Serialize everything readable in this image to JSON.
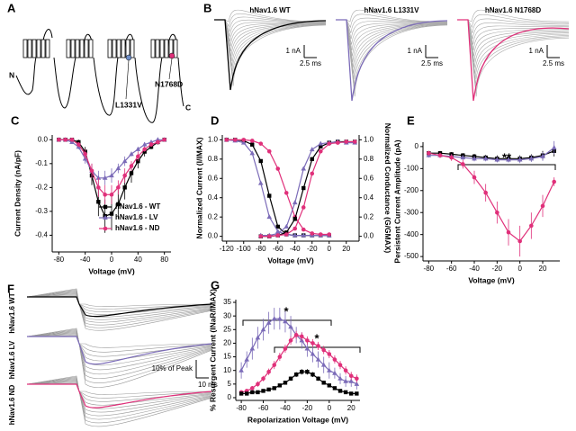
{
  "diagram": {
    "panel": "A",
    "n_terminus": "N",
    "c_terminus": "C",
    "mutations": [
      "L1331V",
      "N1768D"
    ]
  },
  "traces_b": {
    "panel": "B",
    "titles": [
      "hNav1.6 WT",
      "hNav1.6 L1331V",
      "hNav1.6 N1768D"
    ],
    "scale_current": [
      "1 nA",
      "1 nA",
      "1 nA"
    ],
    "scale_time": [
      "2.5 ms",
      "2.5 ms",
      "2.5 ms"
    ]
  },
  "traces_f": {
    "panel": "F",
    "labels": [
      "hNav1.6 WT",
      "hNav1.6 LV",
      "hNav1.6 ND"
    ],
    "scale_amplitude": "10% of Peak",
    "scale_time": "10 ms"
  },
  "chart_data": [
    {
      "type": "line",
      "panel": "C",
      "xlabel": "Voltage (mV)",
      "ylabel": "Current Density (nA/pF)",
      "xlim": [
        -90,
        90
      ],
      "ylim": [
        -0.47,
        0.02
      ],
      "xticks": [
        -80,
        -40,
        0,
        40,
        80
      ],
      "yticks": [
        {
          "value": 0,
          "label": "0.0"
        },
        -0.1,
        -0.2,
        -0.3,
        -0.4
      ],
      "legend": "lower right",
      "x": [
        -80,
        -70,
        -60,
        -50,
        -40,
        -30,
        -20,
        -10,
        0,
        10,
        20,
        30,
        40,
        50,
        60,
        70,
        80
      ],
      "series": [
        {
          "name": "hNav1.6 - WT",
          "color": "#000000",
          "marker": "square",
          "values": [
            0,
            0,
            0,
            -0.01,
            -0.05,
            -0.15,
            -0.26,
            -0.32,
            -0.31,
            -0.27,
            -0.2,
            -0.14,
            -0.09,
            -0.05,
            -0.03,
            -0.01,
            0
          ],
          "errors": [
            0,
            0,
            0,
            0.01,
            0.02,
            0.04,
            0.06,
            0.07,
            0.07,
            0.06,
            0.05,
            0.04,
            0.03,
            0.02,
            0.01,
            0.01,
            0
          ]
        },
        {
          "name": "hNav1.6 - LV",
          "color": "#7b6bb8",
          "marker": "triangle",
          "values": [
            0,
            0,
            -0.01,
            -0.03,
            -0.08,
            -0.13,
            -0.16,
            -0.16,
            -0.15,
            -0.12,
            -0.09,
            -0.06,
            -0.04,
            -0.02,
            -0.01,
            0,
            0
          ],
          "errors": [
            0,
            0,
            0,
            0.01,
            0.02,
            0.03,
            0.03,
            0.03,
            0.03,
            0.02,
            0.02,
            0.01,
            0.01,
            0.01,
            0,
            0,
            0
          ]
        },
        {
          "name": "hNav1.6 - ND",
          "color": "#e0307a",
          "marker": "circle",
          "values": [
            0,
            0,
            0,
            -0.02,
            -0.06,
            -0.13,
            -0.2,
            -0.23,
            -0.23,
            -0.2,
            -0.15,
            -0.11,
            -0.07,
            -0.04,
            -0.02,
            -0.01,
            0
          ],
          "errors": [
            0,
            0,
            0,
            0.01,
            0.02,
            0.03,
            0.04,
            0.04,
            0.04,
            0.03,
            0.03,
            0.02,
            0.02,
            0.01,
            0.01,
            0,
            0
          ]
        }
      ]
    },
    {
      "type": "line",
      "panel": "D",
      "xlabel": "Voltage (mV)",
      "ylabel": "Normalized Current (I/IMAX)",
      "y2label": "Normalized Conductance (G/GMAX)",
      "xlim": [
        -125,
        35
      ],
      "ylim": [
        -0.05,
        1.05
      ],
      "y2lim": [
        -0.05,
        1.05
      ],
      "xticks": [
        -120,
        -100,
        -80,
        -60,
        -40,
        -20,
        0,
        20
      ],
      "yticks": [
        {
          "value": 0,
          "label": "0.0"
        },
        0.2,
        0.4,
        0.6,
        0.8,
        {
          "value": 1,
          "label": "1.0"
        }
      ],
      "y2ticks": [
        {
          "value": 0,
          "label": "0.0"
        },
        0.2,
        0.4,
        0.6,
        0.8,
        {
          "value": 1,
          "label": "1.0"
        }
      ],
      "x": [
        -120,
        -110,
        -100,
        -90,
        -80,
        -70,
        -60,
        -50,
        -40,
        -30,
        -20,
        -10,
        0,
        10,
        20,
        30
      ],
      "series": [
        {
          "color": "#000000",
          "marker": "square",
          "values": [
            1,
            1,
            0.99,
            0.95,
            0.78,
            0.42,
            0.1,
            0.02,
            0.01,
            0.01,
            0.01,
            0.01,
            0.01,
            null,
            null,
            null
          ]
        },
        {
          "color": "#7b6bb8",
          "marker": "triangle",
          "values": [
            1,
            0.99,
            0.97,
            0.86,
            0.55,
            0.2,
            0.05,
            0.02,
            0.01,
            0.01,
            0.01,
            0.01,
            0.01,
            null,
            null,
            null
          ]
        },
        {
          "color": "#e0307a",
          "marker": "circle",
          "values": [
            1,
            1,
            1,
            0.99,
            0.96,
            0.88,
            0.7,
            0.45,
            0.2,
            0.07,
            0.03,
            0.02,
            0.02,
            null,
            null,
            null
          ]
        },
        {
          "color": "#000000",
          "marker": "square",
          "axis": "y2",
          "values": [
            null,
            null,
            null,
            null,
            0,
            0,
            0.01,
            0.04,
            0.18,
            0.5,
            0.8,
            0.93,
            0.97,
            0.98,
            0.98,
            0.98
          ]
        },
        {
          "color": "#7b6bb8",
          "marker": "triangle",
          "axis": "y2",
          "values": [
            null,
            null,
            null,
            null,
            0.01,
            0.01,
            0.03,
            0.1,
            0.35,
            0.7,
            0.9,
            0.96,
            0.97,
            0.98,
            0.97,
            0.97
          ]
        },
        {
          "color": "#e0307a",
          "marker": "circle",
          "axis": "y2",
          "values": [
            null,
            null,
            null,
            null,
            0,
            0,
            0.01,
            0.02,
            0.08,
            0.3,
            0.65,
            0.88,
            0.96,
            0.97,
            0.98,
            0.98
          ]
        }
      ]
    },
    {
      "type": "line",
      "panel": "E",
      "xlabel": "Voltage (mV)",
      "ylabel": "Persistent Current Amplitude (pA)",
      "xlim": [
        -85,
        35
      ],
      "ylim": [
        -520,
        20
      ],
      "xticks": [
        -80,
        -60,
        -40,
        -20,
        0,
        20
      ],
      "yticks": [
        0,
        -100,
        -200,
        -300,
        -400,
        -500
      ],
      "annotations": [
        "**"
      ],
      "x": [
        -80,
        -70,
        -60,
        -50,
        -40,
        -30,
        -20,
        -10,
        0,
        10,
        20,
        30
      ],
      "series": [
        {
          "color": "#000000",
          "marker": "square",
          "values": [
            -30,
            -30,
            -35,
            -40,
            -45,
            -50,
            -55,
            -55,
            -55,
            -50,
            -40,
            -20
          ],
          "errors": [
            10,
            10,
            10,
            10,
            12,
            12,
            15,
            15,
            15,
            15,
            20,
            25
          ]
        },
        {
          "color": "#7b6bb8",
          "marker": "triangle",
          "values": [
            -40,
            -40,
            -45,
            -50,
            -55,
            -55,
            -60,
            -60,
            -60,
            -55,
            -45,
            -5
          ],
          "errors": [
            10,
            10,
            10,
            10,
            12,
            12,
            12,
            12,
            15,
            15,
            20,
            30
          ]
        },
        {
          "color": "#e0307a",
          "marker": "circle",
          "values": [
            -30,
            -40,
            -50,
            -80,
            -140,
            -210,
            -300,
            -390,
            -430,
            -360,
            -270,
            -160
          ],
          "errors": [
            10,
            12,
            15,
            20,
            30,
            40,
            50,
            60,
            70,
            60,
            50,
            20
          ]
        }
      ]
    },
    {
      "type": "line",
      "panel": "G",
      "xlabel": "Repolarization Voltage (mV)",
      "ylabel": "% Resurgent Current (INaR/IMAX)",
      "xlim": [
        -85,
        28
      ],
      "ylim": [
        -1,
        36
      ],
      "xticks": [
        -80,
        -60,
        -40,
        -20,
        0,
        20
      ],
      "yticks": [
        0,
        5,
        10,
        15,
        20,
        25,
        30,
        35
      ],
      "annotations": [
        "*",
        "*"
      ],
      "x": [
        -80,
        -75,
        -70,
        -65,
        -60,
        -55,
        -50,
        -45,
        -40,
        -35,
        -30,
        -25,
        -20,
        -15,
        -10,
        -5,
        0,
        5,
        10,
        15,
        20,
        25
      ],
      "series": [
        {
          "color": "#7b6bb8",
          "marker": "triangle",
          "values": [
            10,
            14,
            18,
            22,
            25,
            27.5,
            29,
            29,
            28,
            26,
            23,
            21,
            18,
            16,
            14,
            12,
            10,
            9,
            7,
            6,
            6,
            5
          ],
          "errors": [
            3,
            3,
            4,
            4,
            4,
            4,
            4,
            4,
            4,
            4,
            3,
            3,
            3,
            3,
            3,
            3,
            3,
            2,
            2,
            2,
            2,
            2
          ]
        },
        {
          "color": "#e0307a",
          "marker": "circle",
          "values": [
            2,
            2.5,
            3.5,
            5,
            7,
            9.5,
            12,
            15,
            18,
            21,
            23,
            22.5,
            21,
            20,
            19,
            17.5,
            16,
            14,
            12,
            10,
            8,
            7
          ],
          "errors": [
            0.5,
            0.5,
            0.8,
            1,
            1,
            1.2,
            1.5,
            1.5,
            1.5,
            1.5,
            1.5,
            1.5,
            1.5,
            1.5,
            1.5,
            1.5,
            1.5,
            1.5,
            1.5,
            1.5,
            1.5,
            1.5
          ]
        },
        {
          "color": "#000000",
          "marker": "square",
          "values": [
            1.5,
            1.5,
            2,
            2,
            2.5,
            3,
            3.5,
            4.5,
            5.5,
            7,
            8.5,
            9.5,
            9.5,
            8.5,
            7,
            5.5,
            4.5,
            3.5,
            2.5,
            2,
            1.5,
            1.5
          ],
          "errors": [
            0.3,
            0.3,
            0.3,
            0.3,
            0.4,
            0.4,
            0.5,
            0.6,
            0.7,
            0.8,
            0.9,
            1,
            1,
            0.9,
            0.8,
            0.7,
            0.6,
            0.5,
            0.4,
            0.3,
            0.3,
            0.3
          ]
        }
      ]
    }
  ]
}
